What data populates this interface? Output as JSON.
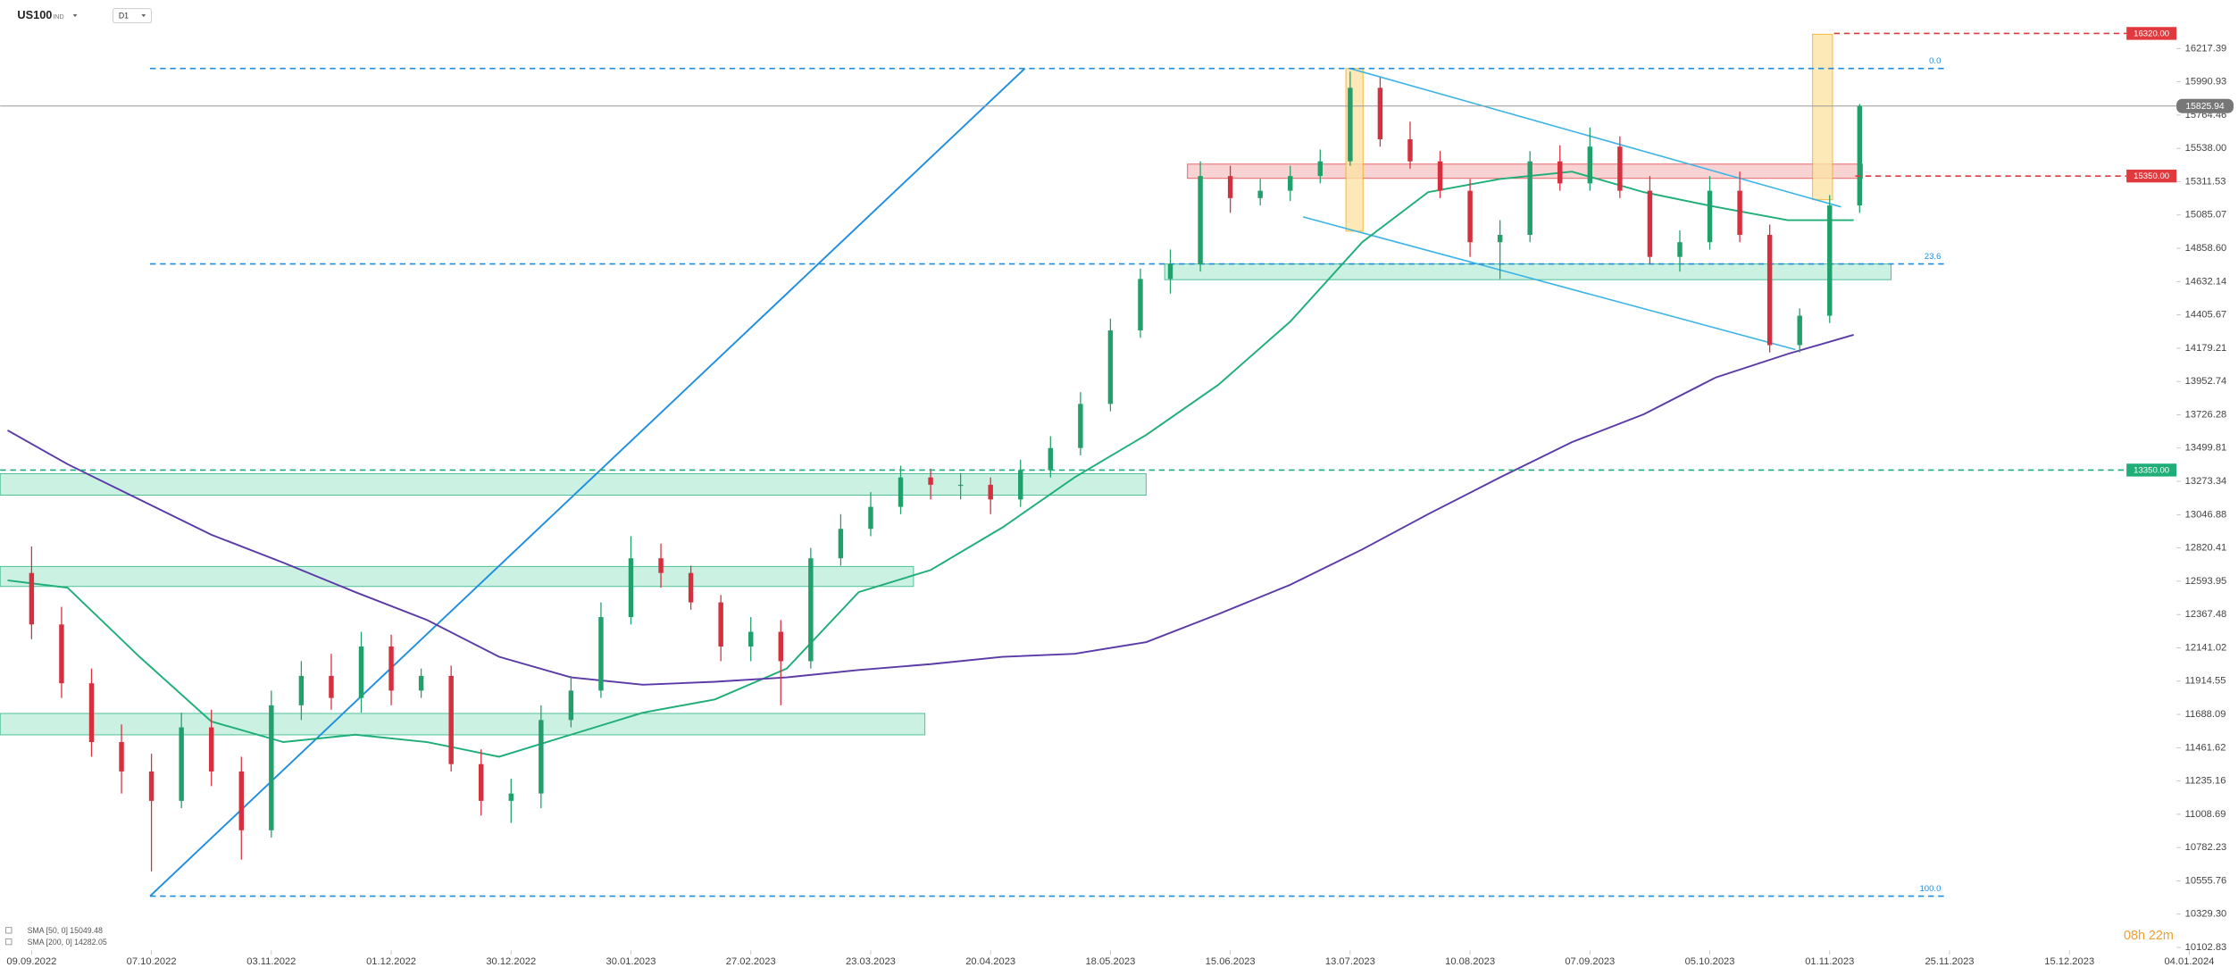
{
  "chart_data": {
    "type": "candlestick",
    "symbol": "US100",
    "symbol_tag": "IND",
    "timeframe": "D1",
    "x": [
      0,
      5,
      10,
      15,
      20,
      25,
      30,
      35,
      40,
      45,
      50,
      55,
      60,
      65,
      70,
      75,
      80,
      85,
      90,
      95,
      100,
      105,
      110,
      115,
      120,
      125,
      130,
      135,
      140,
      145,
      150,
      155,
      160,
      165,
      170,
      175,
      180,
      185,
      190,
      195,
      200,
      205,
      210,
      215,
      220,
      225,
      230,
      235,
      240,
      245,
      250,
      255,
      260,
      265,
      270,
      275,
      280,
      285,
      290,
      295,
      300,
      305
    ],
    "open": [
      12650,
      12300,
      11900,
      11500,
      11300,
      11100,
      11600,
      11300,
      10900,
      11750,
      11950,
      11800,
      12150,
      11850,
      11950,
      11350,
      11100,
      11150,
      11650,
      11850,
      12350,
      12750,
      12650,
      12450,
      12150,
      12250,
      12050,
      12750,
      12950,
      13100,
      13300,
      13250,
      13250,
      13150,
      13350,
      13500,
      13800,
      14300,
      14650,
      14750,
      15350,
      15200,
      15250,
      15350,
      15450,
      15950,
      15600,
      15450,
      15250,
      14900,
      14950,
      15450,
      15300,
      15550,
      15250,
      14800,
      14900,
      15250,
      14950,
      14200,
      14400,
      15150
    ],
    "high": [
      12830,
      12420,
      12000,
      11620,
      11420,
      11700,
      11720,
      11400,
      11850,
      12050,
      12100,
      12250,
      12230,
      12000,
      12020,
      11450,
      11250,
      11750,
      11950,
      12450,
      12900,
      12850,
      12700,
      12500,
      12350,
      12330,
      12820,
      13050,
      13200,
      13380,
      13360,
      13330,
      13300,
      13420,
      13580,
      13880,
      14380,
      14720,
      14850,
      15450,
      15420,
      15330,
      15420,
      15530,
      16060,
      16020,
      15720,
      15520,
      15330,
      15050,
      15520,
      15560,
      15680,
      15620,
      15350,
      14980,
      15350,
      15380,
      15020,
      14450,
      15220,
      15840
    ],
    "low": [
      12200,
      11800,
      11400,
      11150,
      10620,
      11050,
      11200,
      10700,
      10850,
      11650,
      11720,
      11700,
      11750,
      11800,
      11300,
      11000,
      10950,
      11050,
      11600,
      11800,
      12300,
      12550,
      12400,
      12050,
      12050,
      11750,
      12000,
      12700,
      12900,
      13050,
      13150,
      13150,
      13050,
      13100,
      13300,
      13450,
      13750,
      14250,
      14550,
      14700,
      15100,
      15150,
      15180,
      15300,
      15420,
      15550,
      15400,
      15200,
      14800,
      14650,
      14900,
      15250,
      15250,
      15200,
      14750,
      14700,
      14850,
      14900,
      14150,
      14150,
      14350,
      15100
    ],
    "close": [
      12300,
      11900,
      11500,
      11300,
      11100,
      11600,
      11300,
      10900,
      11750,
      11950,
      11800,
      12150,
      11850,
      11950,
      11350,
      11100,
      11150,
      11650,
      11850,
      12350,
      12750,
      12650,
      12450,
      12150,
      12250,
      12050,
      12750,
      12950,
      13100,
      13300,
      13250,
      13250,
      13150,
      13350,
      13500,
      13800,
      14300,
      14650,
      14750,
      15350,
      15200,
      15250,
      15350,
      15450,
      15950,
      15600,
      15450,
      15250,
      14900,
      14950,
      15450,
      15300,
      15550,
      15250,
      14800,
      14900,
      15250,
      14950,
      14200,
      14400,
      15150,
      15825.94
    ],
    "up_color": "#22a06b",
    "down_color": "#d6303f",
    "sma": [
      {
        "name": "SMA [50, 0] 15049.48",
        "color": "#1fae78",
        "x": [
          -4,
          6,
          18,
          30,
          42,
          54,
          66,
          78,
          90,
          102,
          114,
          126,
          138,
          150,
          162,
          174,
          186,
          198,
          210,
          222,
          233,
          245,
          257,
          269,
          281,
          293,
          304
        ],
        "values": [
          12600,
          12550,
          12080,
          11640,
          11500,
          11550,
          11500,
          11400,
          11550,
          11700,
          11790,
          12000,
          12520,
          12670,
          12960,
          13300,
          13590,
          13930,
          14360,
          14900,
          15240,
          15330,
          15380,
          15240,
          15140,
          15050,
          15050
        ]
      },
      {
        "name": "SMA [200, 0] 14282.05",
        "color": "#5b3aa8",
        "x": [
          -4,
          6,
          18,
          30,
          42,
          54,
          66,
          78,
          90,
          102,
          114,
          126,
          138,
          150,
          162,
          174,
          186,
          198,
          210,
          222,
          233,
          245,
          257,
          269,
          281,
          293,
          304
        ],
        "values": [
          13620,
          13390,
          13150,
          12910,
          12720,
          12520,
          12330,
          12080,
          11940,
          11890,
          11910,
          11940,
          11990,
          12030,
          12080,
          12100,
          12180,
          12370,
          12570,
          12810,
          13050,
          13300,
          13540,
          13730,
          13980,
          14140,
          14270
        ]
      }
    ],
    "current_price": 15825.94,
    "levels": [
      {
        "value": 16320,
        "label": "16320.00",
        "color": "#e03a3e"
      },
      {
        "value": 15350,
        "label": "15350.00",
        "color": "#e03a3e"
      },
      {
        "value": 13350,
        "label": "13350.00",
        "color": "#1fae78"
      }
    ],
    "fib": [
      {
        "label": "0.0",
        "value": 16081.5
      },
      {
        "label": "23.6",
        "value": 14752
      },
      {
        "label": "100.0",
        "value": 10452
      }
    ],
    "countdown": "08h 22m",
    "xlim": [
      -5.24,
      357.86
    ],
    "xticks": [
      {
        "value": 0,
        "label": "09.09.2022"
      },
      {
        "value": 20,
        "label": "07.10.2022"
      },
      {
        "value": 40,
        "label": "03.11.2022"
      },
      {
        "value": 60,
        "label": "01.12.2022"
      },
      {
        "value": 80,
        "label": "30.12.2022"
      },
      {
        "value": 100,
        "label": "30.01.2023"
      },
      {
        "value": 120,
        "label": "27.02.2023"
      },
      {
        "value": 140,
        "label": "23.03.2023"
      },
      {
        "value": 160,
        "label": "20.04.2023"
      },
      {
        "value": 180,
        "label": "18.05.2023"
      },
      {
        "value": 200,
        "label": "15.06.2023"
      },
      {
        "value": 220,
        "label": "13.07.2023"
      },
      {
        "value": 240,
        "label": "10.08.2023"
      },
      {
        "value": 260,
        "label": "07.09.2023"
      },
      {
        "value": 280,
        "label": "05.10.2023"
      },
      {
        "value": 300,
        "label": "01.11.2023"
      },
      {
        "value": 320,
        "label": "25.11.2023"
      },
      {
        "value": 340,
        "label": "15.12.2023"
      },
      {
        "value": 360,
        "label": "04.01.2024"
      }
    ],
    "ylim": [
      10102.83,
      16547.4
    ],
    "yticks": [
      16217.39,
      15990.93,
      15764.46,
      {
        "value": 15538,
        "label": "15538.00"
      },
      15311.53,
      15085.07,
      {
        "value": 14858.6,
        "label": "14858.60"
      },
      14632.14,
      14405.67,
      14179.21,
      13952.74,
      13726.28,
      13499.81,
      13273.34,
      13046.88,
      12820.41,
      12593.95,
      12367.48,
      12141.02,
      11914.55,
      11688.09,
      11461.62,
      11235.16,
      11008.69,
      10782.23,
      10555.76,
      {
        "value": 10329.3,
        "label": "10329.30"
      },
      10102.83
    ]
  }
}
